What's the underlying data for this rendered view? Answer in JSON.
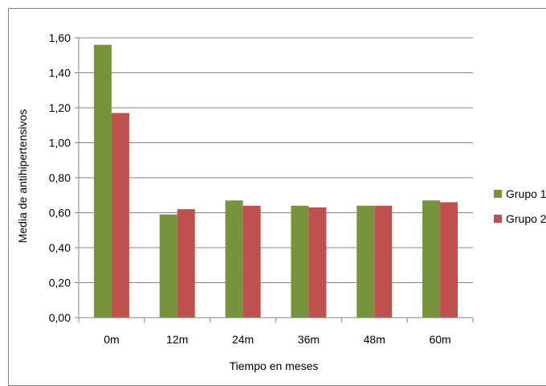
{
  "chart_data": {
    "type": "bar",
    "title": "",
    "xlabel": "Tiempo en meses",
    "ylabel": "Media de antihipertensivos",
    "categories": [
      "0m",
      "12m",
      "24m",
      "36m",
      "48m",
      "60m"
    ],
    "ylim": [
      0,
      1.6
    ],
    "yticks": [
      "0,00",
      "0,20",
      "0,40",
      "0,60",
      "0,80",
      "1,00",
      "1,20",
      "1,40",
      "1,60"
    ],
    "grid": true,
    "legend_position": "right",
    "series": [
      {
        "name": "Grupo 1",
        "color": "#77933c",
        "values": [
          1.56,
          0.59,
          0.67,
          0.64,
          0.64,
          0.67
        ]
      },
      {
        "name": "Grupo 2",
        "color": "#c0504d",
        "values": [
          1.17,
          0.62,
          0.64,
          0.63,
          0.64,
          0.66
        ]
      }
    ]
  }
}
